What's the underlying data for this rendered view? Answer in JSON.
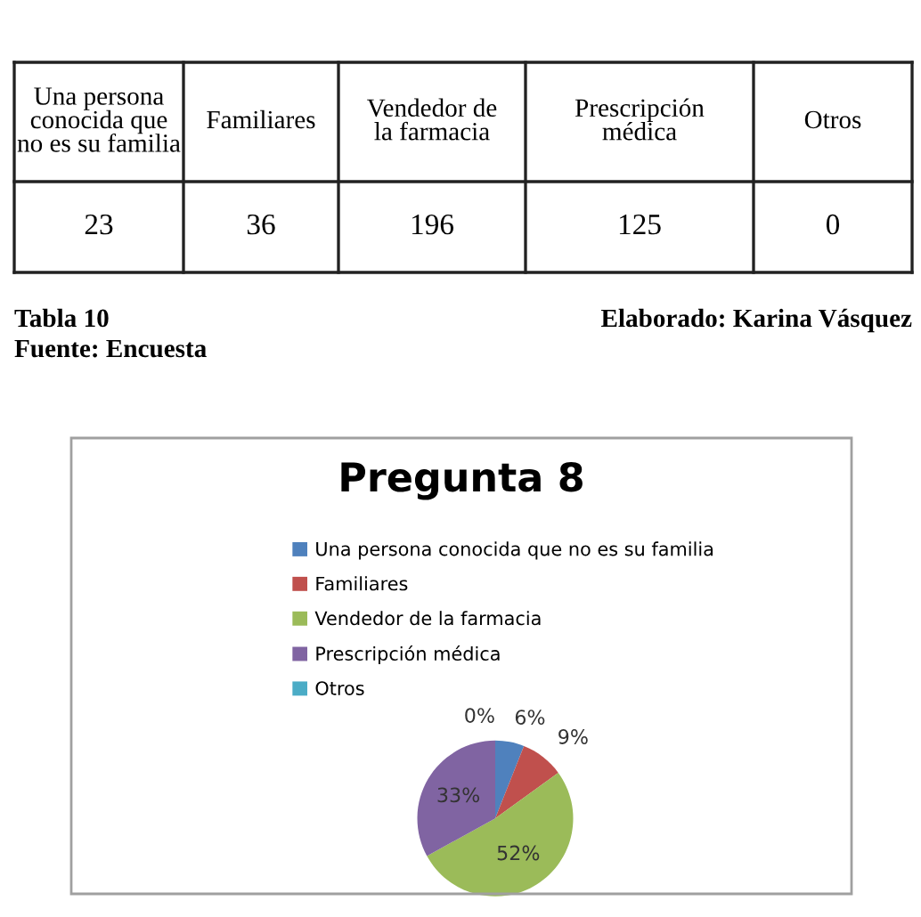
{
  "chart_data": {
    "type": "pie",
    "title": "Pregunta 8",
    "categories": [
      "Una persona conocida que no es su familia",
      "Familiares",
      "Vendedor de la farmacia",
      "Prescripción médica",
      "Otros"
    ],
    "values": [
      6,
      9,
      52,
      33,
      0
    ],
    "colors": [
      "#4f81bd",
      "#c0504d",
      "#9bbb59",
      "#8064a2",
      "#4bacc6"
    ],
    "value_labels": [
      "6%",
      "9%",
      "52%",
      "33%",
      "0%"
    ],
    "legend": "top",
    "annotations": [
      "Una persona\nconocida que\nno es su familia",
      "Familiares",
      "Vendedor de\nla farmacia",
      "Prescripción\nmédica",
      "Otros",
      "23",
      "36",
      "196",
      "125",
      "0",
      "Tabla 10",
      "Elaborado: Karina Vásquez",
      "Fuente: Encuesta"
    ]
  }
}
